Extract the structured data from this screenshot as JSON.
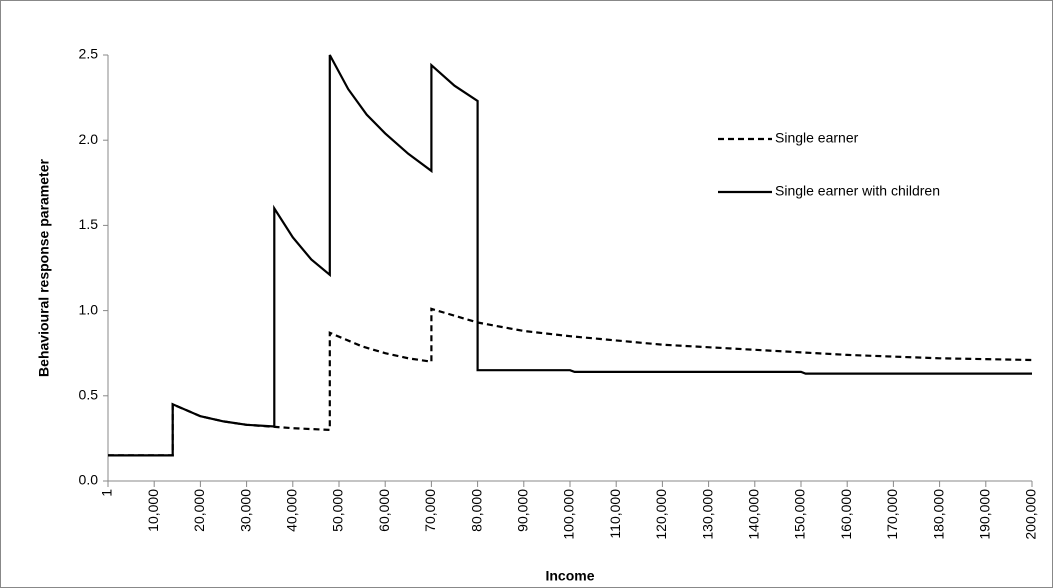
{
  "chart_data": {
    "type": "line",
    "y_label": "Behavioural response parameter",
    "x_label": "Income",
    "xlim": [
      1,
      200000
    ],
    "xticks": [
      1,
      {
        "value": 10000,
        "label": "10,000"
      },
      {
        "value": 20000,
        "label": "20,000"
      },
      {
        "value": 30000,
        "label": "30,000"
      },
      {
        "value": 40000,
        "label": "40,000"
      },
      {
        "value": 50000,
        "label": "50,000"
      },
      {
        "value": 60000,
        "label": "60,000"
      },
      {
        "value": 70000,
        "label": "70,000"
      },
      {
        "value": 80000,
        "label": "80,000"
      },
      {
        "value": 90000,
        "label": "90,000"
      },
      {
        "value": 100000,
        "label": "100,000"
      },
      {
        "value": 110000,
        "label": "110,000"
      },
      {
        "value": 120000,
        "label": "120,000"
      },
      {
        "value": 130000,
        "label": "130,000"
      },
      {
        "value": 140000,
        "label": "140,000"
      },
      {
        "value": 150000,
        "label": "150,000"
      },
      {
        "value": 160000,
        "label": "160,000"
      },
      {
        "value": 170000,
        "label": "170,000"
      },
      {
        "value": 180000,
        "label": "180,000"
      },
      {
        "value": 190000,
        "label": "190,000"
      },
      {
        "value": 200000,
        "label": "200,000"
      }
    ],
    "ylim": [
      0,
      2.5
    ],
    "yticks": [
      {
        "value": 0,
        "label": "0.0"
      },
      0.5,
      {
        "value": 1,
        "label": "1.0"
      },
      1.5,
      {
        "value": 2,
        "label": "2.0"
      },
      2.5
    ],
    "grid": false,
    "legend": "upper right",
    "series": [
      {
        "name": "Single earner",
        "color": "#000000",
        "dashed": true,
        "x": [
          1,
          14000,
          14000,
          20000,
          25000,
          30000,
          35000,
          40000,
          48000,
          48000,
          55000,
          60000,
          65000,
          70000,
          70000,
          80000,
          90000,
          100000,
          120000,
          140000,
          160000,
          180000,
          200000
        ],
        "values": [
          0.15,
          0.15,
          0.45,
          0.38,
          0.35,
          0.33,
          0.32,
          0.31,
          0.3,
          0.87,
          0.79,
          0.75,
          0.72,
          0.7,
          1.01,
          0.93,
          0.88,
          0.85,
          0.8,
          0.77,
          0.74,
          0.72,
          0.71
        ]
      },
      {
        "name": "Single earner with children",
        "color": "#000000",
        "dashed": false,
        "x": [
          1,
          14000,
          14000,
          20000,
          25000,
          30000,
          36000,
          36000,
          40000,
          44000,
          48000,
          48000,
          52000,
          56000,
          60000,
          65000,
          70000,
          70000,
          75000,
          80000,
          80000,
          100000,
          101000,
          150000,
          151000,
          200000
        ],
        "values": [
          0.15,
          0.15,
          0.45,
          0.38,
          0.35,
          0.33,
          0.32,
          1.6,
          1.43,
          1.3,
          1.21,
          2.5,
          2.3,
          2.15,
          2.04,
          1.92,
          1.82,
          2.44,
          2.32,
          2.23,
          0.65,
          0.65,
          0.64,
          0.64,
          0.63,
          0.63
        ]
      }
    ]
  }
}
